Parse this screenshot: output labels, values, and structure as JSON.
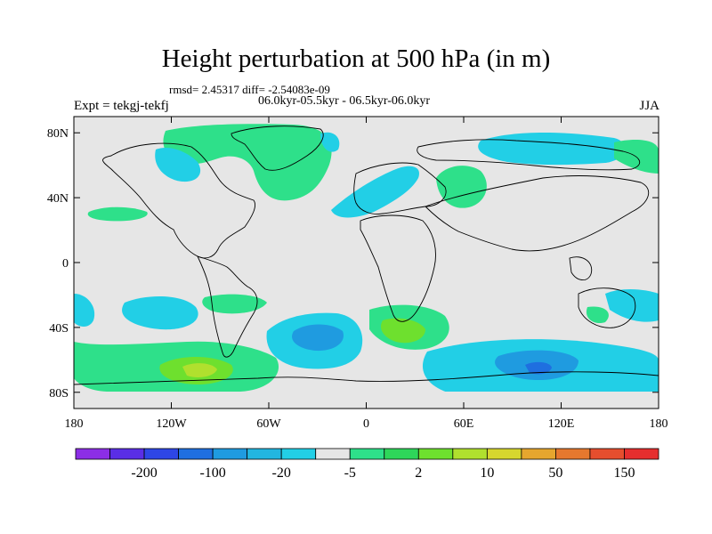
{
  "title": "Height perturbation at 500 hPa (in m)",
  "stats": "rmsd= 2.45317 diff= -2.54083e-09",
  "left_label": "Expt = tekgj-tekfj",
  "center_label": "06.0kyr-05.5kyr - 06.5kyr-06.0kyr",
  "right_label": "JJA",
  "map": {
    "lon_range": [
      -180,
      180
    ],
    "lat_range": [
      -90,
      90
    ],
    "lat_ticks": [
      {
        "value": 80,
        "label": "80N"
      },
      {
        "value": 40,
        "label": "40N"
      },
      {
        "value": 0,
        "label": "0"
      },
      {
        "value": -40,
        "label": "40S"
      },
      {
        "value": -80,
        "label": "80S"
      }
    ],
    "lon_ticks": [
      {
        "value": -180,
        "label": "180"
      },
      {
        "value": -120,
        "label": "120W"
      },
      {
        "value": -60,
        "label": "60W"
      },
      {
        "value": 0,
        "label": "0"
      },
      {
        "value": 60,
        "label": "60E"
      },
      {
        "value": 120,
        "label": "120E"
      },
      {
        "value": 180,
        "label": "180"
      }
    ]
  },
  "colorbar": {
    "colors": [
      "#8c2ee6",
      "#5a2ee6",
      "#2e46e6",
      "#1f6fe0",
      "#1f9be0",
      "#22b6e0",
      "#22cfe6",
      "#e6e6e6",
      "#2ee08a",
      "#2ed65a",
      "#6ee02e",
      "#b0e02e",
      "#d6d62e",
      "#e6a62e",
      "#e6782e",
      "#e64e2e",
      "#e62e2e"
    ],
    "labels": [
      {
        "text": "-200",
        "after_index": 1
      },
      {
        "text": "-100",
        "after_index": 3
      },
      {
        "text": "-20",
        "after_index": 5
      },
      {
        "text": "-5",
        "after_index": 7
      },
      {
        "text": "2",
        "after_index": 9
      },
      {
        "text": "10",
        "after_index": 11
      },
      {
        "text": "50",
        "after_index": 13
      },
      {
        "text": "150",
        "after_index": 15
      }
    ]
  }
}
